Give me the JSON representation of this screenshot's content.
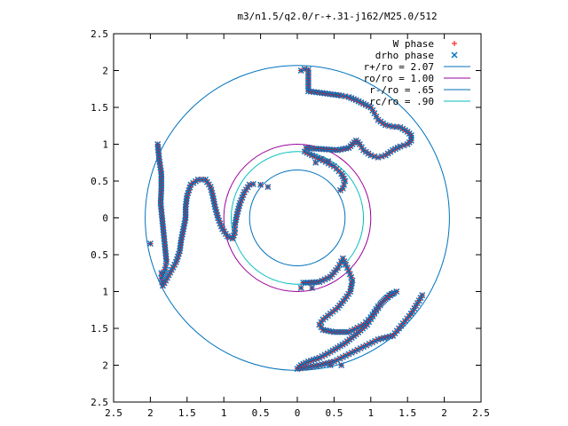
{
  "chart_data": {
    "type": "scatter",
    "title": "m3/n1.5/q2.0/r-+.31-j162/M25.0/512",
    "xlabel": "",
    "ylabel": "",
    "xlim": [
      -2.5,
      2.5
    ],
    "ylim": [
      -2.5,
      2.5
    ],
    "x_tick_values": [
      -2.5,
      -2,
      -1.5,
      -1,
      -0.5,
      0,
      0.5,
      1,
      1.5,
      2,
      2.5
    ],
    "y_tick_values": [
      -2.5,
      -2,
      -1.5,
      -1,
      -0.5,
      0,
      0.5,
      1,
      1.5,
      2,
      2.5
    ],
    "x_tick_labels": [
      "2.5",
      "2",
      "1.5",
      "1",
      "0.5",
      "0",
      "0.5",
      "1",
      "1.5",
      "2",
      "2.5"
    ],
    "y_tick_labels": [
      "2.5",
      "2",
      "1.5",
      "1",
      "0.5",
      "0",
      "0.5",
      "1",
      "1.5",
      "2",
      "2.5"
    ],
    "legend_position": "top-right",
    "grid": false,
    "series": [
      {
        "name": "W phase",
        "marker": "+",
        "color": "#ff0000"
      },
      {
        "name": "drho phase",
        "marker": "x",
        "color": "#0072bd"
      }
    ],
    "circles": [
      {
        "name": "r+/ro = 2.07",
        "radius": 2.07,
        "color": "#0072bd"
      },
      {
        "name": "ro/ro = 1.00",
        "radius": 1.0,
        "color": "#9b009b"
      },
      {
        "name": "r-/ro = .65",
        "radius": 0.65,
        "color": "#0072bd"
      },
      {
        "name": "rc/ro = .90",
        "radius": 0.9,
        "color": "#00bcbc"
      }
    ],
    "arms": [
      {
        "name": "arm-upper-right",
        "points": [
          [
            0.05,
            2.0
          ],
          [
            0.1,
            2.02
          ],
          [
            0.15,
            2.01
          ],
          [
            0.15,
            1.75
          ],
          [
            0.15,
            1.72
          ],
          [
            0.3,
            1.7
          ],
          [
            0.45,
            1.68
          ],
          [
            0.6,
            1.66
          ],
          [
            0.7,
            1.64
          ],
          [
            0.8,
            1.6
          ],
          [
            0.9,
            1.55
          ],
          [
            1.0,
            1.5
          ],
          [
            1.05,
            1.42
          ],
          [
            1.1,
            1.33
          ],
          [
            1.2,
            1.26
          ],
          [
            1.3,
            1.24
          ],
          [
            1.4,
            1.23
          ],
          [
            1.5,
            1.17
          ],
          [
            1.55,
            1.12
          ],
          [
            1.55,
            1.05
          ],
          [
            1.5,
            1.0
          ],
          [
            1.4,
            0.97
          ],
          [
            1.3,
            0.92
          ],
          [
            1.2,
            0.85
          ],
          [
            1.1,
            0.82
          ],
          [
            1.0,
            0.85
          ],
          [
            0.9,
            0.92
          ],
          [
            0.85,
            1.0
          ],
          [
            0.8,
            1.05
          ],
          [
            0.75,
            1.0
          ],
          [
            0.7,
            0.95
          ],
          [
            0.55,
            0.92
          ],
          [
            0.4,
            0.93
          ],
          [
            0.25,
            0.94
          ],
          [
            0.12,
            0.95
          ],
          [
            0.1,
            0.9
          ],
          [
            0.2,
            0.85
          ],
          [
            0.35,
            0.78
          ],
          [
            0.5,
            0.7
          ],
          [
            0.6,
            0.6
          ],
          [
            0.65,
            0.5
          ],
          [
            0.62,
            0.4
          ],
          [
            0.55,
            0.35
          ]
        ]
      },
      {
        "name": "arm-left",
        "points": [
          [
            -1.9,
            1.0
          ],
          [
            -1.88,
            0.8
          ],
          [
            -1.85,
            0.6
          ],
          [
            -1.85,
            0.4
          ],
          [
            -1.86,
            0.2
          ],
          [
            -1.84,
            0.0
          ],
          [
            -1.82,
            -0.2
          ],
          [
            -1.8,
            -0.4
          ],
          [
            -1.78,
            -0.6
          ],
          [
            -1.8,
            -0.7
          ],
          [
            -1.85,
            -0.82
          ],
          [
            -1.83,
            -0.92
          ],
          [
            -1.65,
            -0.6
          ],
          [
            -1.6,
            -0.45
          ],
          [
            -1.58,
            -0.3
          ],
          [
            -1.55,
            -0.15
          ],
          [
            -1.52,
            0.0
          ],
          [
            -1.52,
            0.15
          ],
          [
            -1.5,
            0.3
          ],
          [
            -1.45,
            0.45
          ],
          [
            -1.35,
            0.52
          ],
          [
            -1.25,
            0.52
          ],
          [
            -1.18,
            0.42
          ],
          [
            -1.15,
            0.3
          ],
          [
            -1.12,
            0.15
          ],
          [
            -1.08,
            0.0
          ],
          [
            -1.02,
            -0.15
          ],
          [
            -0.95,
            -0.25
          ],
          [
            -0.88,
            -0.28
          ],
          [
            -0.85,
            -0.2
          ],
          [
            -0.85,
            -0.1
          ],
          [
            -0.82,
            0.05
          ],
          [
            -0.78,
            0.2
          ],
          [
            -0.72,
            0.35
          ],
          [
            -0.65,
            0.45
          ],
          [
            -0.55,
            0.47
          ]
        ]
      },
      {
        "name": "arm-lower",
        "points": [
          [
            0.08,
            -0.88
          ],
          [
            0.15,
            -0.88
          ],
          [
            0.3,
            -0.87
          ],
          [
            0.45,
            -0.8
          ],
          [
            0.55,
            -0.68
          ],
          [
            0.62,
            -0.55
          ],
          [
            0.7,
            -0.72
          ],
          [
            0.75,
            -0.85
          ],
          [
            0.72,
            -1.0
          ],
          [
            0.65,
            -1.1
          ],
          [
            0.55,
            -1.22
          ],
          [
            0.45,
            -1.3
          ],
          [
            0.35,
            -1.38
          ],
          [
            0.3,
            -1.45
          ],
          [
            0.35,
            -1.52
          ],
          [
            0.5,
            -1.55
          ],
          [
            0.7,
            -1.55
          ],
          [
            0.9,
            -1.45
          ],
          [
            1.0,
            -1.35
          ],
          [
            1.1,
            -1.2
          ],
          [
            1.2,
            -1.1
          ],
          [
            1.3,
            -1.03
          ],
          [
            1.35,
            -1.0
          ],
          [
            1.25,
            -1.05
          ],
          [
            1.15,
            -1.15
          ],
          [
            1.05,
            -1.3
          ],
          [
            0.95,
            -1.45
          ],
          [
            0.8,
            -1.58
          ],
          [
            0.65,
            -1.7
          ],
          [
            0.45,
            -1.82
          ],
          [
            0.3,
            -1.9
          ],
          [
            0.15,
            -1.95
          ],
          [
            0.05,
            -2.0
          ],
          [
            0.0,
            -2.05
          ],
          [
            0.3,
            -2.0
          ],
          [
            0.5,
            -1.95
          ],
          [
            0.7,
            -1.85
          ],
          [
            0.9,
            -1.75
          ],
          [
            1.1,
            -1.65
          ],
          [
            1.3,
            -1.6
          ],
          [
            1.55,
            -1.3
          ],
          [
            1.7,
            -1.05
          ],
          [
            1.72,
            -1.1
          ]
        ]
      }
    ],
    "isolated_points": [
      [
        -2.0,
        -0.35
      ],
      [
        -1.85,
        -0.75
      ],
      [
        0.05,
        -0.95
      ],
      [
        0.2,
        -0.95
      ],
      [
        0.25,
        0.75
      ],
      [
        0.33,
        0.8
      ],
      [
        0.42,
        0.77
      ],
      [
        -0.5,
        0.45
      ],
      [
        -0.4,
        0.42
      ],
      [
        1.3,
        -1.6
      ],
      [
        1.55,
        -1.3
      ],
      [
        0.6,
        -2.0
      ],
      [
        0.45,
        -2.0
      ]
    ]
  }
}
